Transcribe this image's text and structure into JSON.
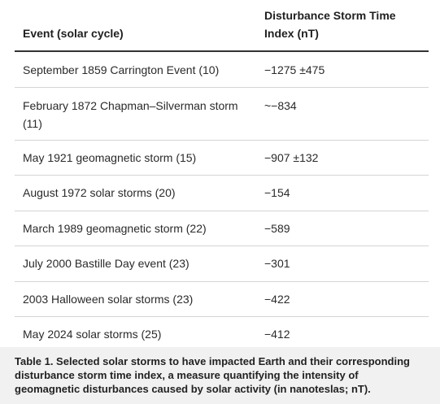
{
  "table": {
    "headers": {
      "event": "Event (solar cycle)",
      "dst": "Disturbance Storm Time Index (nT)"
    },
    "rows": [
      {
        "event": "September 1859 Carrington Event (10)",
        "dst": "−1275 ±475"
      },
      {
        "event": "February 1872 Chapman–Silverman storm (11)",
        "dst": "~−834"
      },
      {
        "event": "May 1921 geomagnetic storm (15)",
        "dst": "−907 ±132"
      },
      {
        "event": "August 1972 solar storms (20)",
        "dst": "−154"
      },
      {
        "event": "March 1989 geomagnetic storm (22)",
        "dst": "−589"
      },
      {
        "event": "July 2000 Bastille Day event (23)",
        "dst": "−301"
      },
      {
        "event": "2003 Halloween solar storms (23)",
        "dst": "−422"
      },
      {
        "event": "May 2024 solar storms (25)",
        "dst": "−412"
      }
    ]
  },
  "caption": "Table 1. Selected solar storms to have impacted Earth and their corresponding disturbance storm time index, a measure quantifying the intensity of geomagnetic disturbances caused by solar activity (in nanoteslas; nT)."
}
